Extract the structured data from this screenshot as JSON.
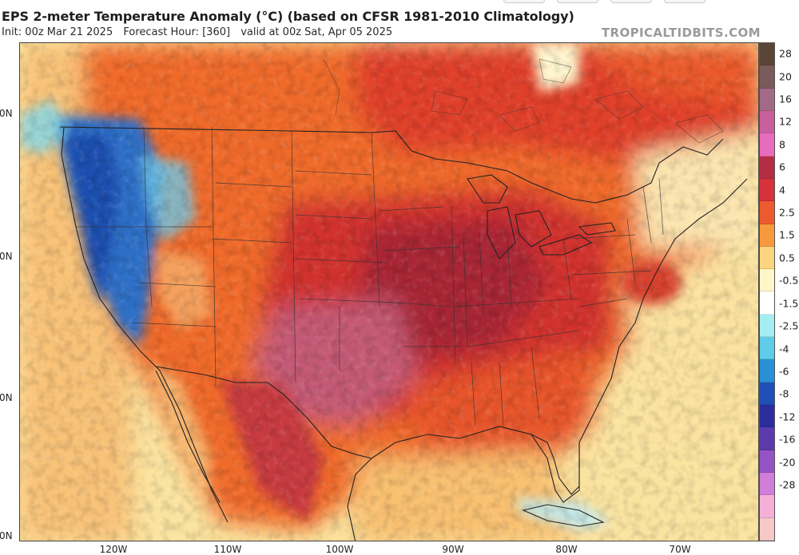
{
  "header": {
    "title": "EPS 2-meter Temperature Anomaly (°C) (based on CFSR 1981-2010 Climatology)",
    "init": "Init: 00z Mar 21 2025",
    "forecast_hour": "Forecast Hour: [360]",
    "valid": "valid at 00z Sat, Apr 05 2025",
    "site": "TROPICALTIDBITS.COM"
  },
  "map": {
    "lat_labels": [
      "0N",
      "0N",
      "0N",
      "0N"
    ],
    "lon_labels": [
      "120W",
      "110W",
      "100W",
      "90W",
      "80W",
      "70W"
    ]
  },
  "colorbar": {
    "ticks": [
      "28",
      "20",
      "16",
      "12",
      "8",
      "6",
      "4",
      "2.5",
      "1.5",
      "0.5",
      "-0.5",
      "-1.5",
      "-2.5",
      "-4",
      "-6",
      "-8",
      "-12",
      "-16",
      "-20",
      "-28"
    ],
    "colors": [
      "#5a4636",
      "#7b5a5a",
      "#a26a86",
      "#c8609e",
      "#e86cbc",
      "#b32d44",
      "#d5323b",
      "#ec5a2e",
      "#f79a3e",
      "#fbd580",
      "#fff6c8",
      "#ffffff",
      "#a3eef3",
      "#5fcce8",
      "#2a8fd4",
      "#1f4fb7",
      "#2b2d9c",
      "#5c3aab",
      "#9554c4",
      "#d17ed8",
      "#f5b0d8",
      "#f7c9c6"
    ]
  }
}
